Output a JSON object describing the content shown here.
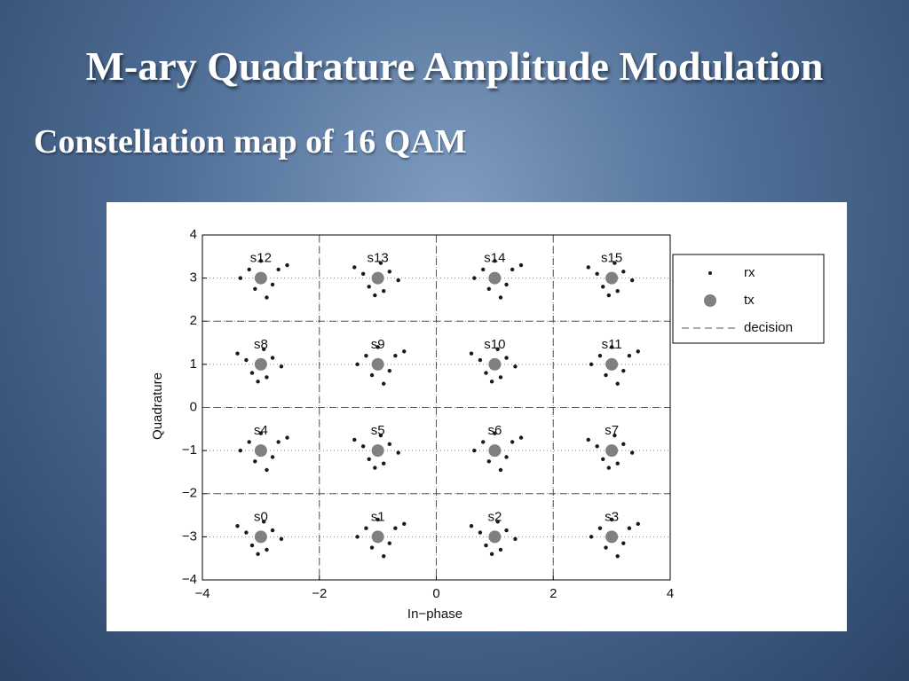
{
  "title": "M-ary Quadrature Amplitude Modulation",
  "subtitle": "Constellation map of 16 QAM",
  "chart_data": {
    "type": "scatter",
    "xlabel": "In−phase",
    "ylabel": "Quadrature",
    "xlim": [
      -4,
      4
    ],
    "ylim": [
      -4,
      4
    ],
    "xticks": [
      {
        "value": -4,
        "label": "−4"
      },
      {
        "value": -2,
        "label": "−2"
      },
      0,
      2,
      4
    ],
    "yticks": [
      {
        "value": -4,
        "label": "−4"
      },
      {
        "value": -3,
        "label": "−3"
      },
      {
        "value": -2,
        "label": "−2"
      },
      {
        "value": -1,
        "label": "−1"
      },
      0,
      1,
      2,
      3,
      4
    ],
    "grid": true,
    "legend": "right",
    "series": [
      {
        "name": "rx",
        "color": "#1a1a1a",
        "x": [
          -2.8,
          -3.25,
          -2.9,
          -3.15,
          -2.65,
          -3.4,
          -2.95,
          -3.05,
          -1.2,
          -0.7,
          -1.1,
          -0.8,
          -1.35,
          -0.55,
          -1.0,
          -0.9,
          1.2,
          0.75,
          1.1,
          0.85,
          1.35,
          0.6,
          1.05,
          0.95,
          2.8,
          3.3,
          2.9,
          3.2,
          2.65,
          3.45,
          3.0,
          3.1,
          -3.2,
          -2.7,
          -3.1,
          -2.8,
          -3.35,
          -2.55,
          -3.0,
          -2.9,
          -0.8,
          -1.25,
          -0.9,
          -1.15,
          -0.65,
          -1.4,
          -0.95,
          -1.05,
          0.8,
          1.3,
          0.9,
          1.2,
          0.65,
          1.45,
          1.0,
          1.1,
          3.2,
          2.75,
          3.1,
          2.85,
          3.35,
          2.6,
          3.05,
          2.95,
          -2.8,
          -3.25,
          -2.9,
          -3.15,
          -2.65,
          -3.4,
          -2.95,
          -3.05,
          -1.2,
          -0.7,
          -1.1,
          -0.8,
          -1.35,
          -0.55,
          -1.0,
          -0.9,
          1.2,
          0.75,
          1.1,
          0.85,
          1.35,
          0.6,
          1.05,
          0.95,
          2.8,
          3.3,
          2.9,
          3.2,
          2.65,
          3.45,
          3.0,
          3.1,
          -3.2,
          -2.7,
          -3.1,
          -2.8,
          -3.35,
          -2.55,
          -3.0,
          -2.9,
          -0.8,
          -1.25,
          -0.9,
          -1.15,
          -0.65,
          -1.4,
          -0.95,
          -1.05,
          0.8,
          1.3,
          0.9,
          1.2,
          0.65,
          1.45,
          1.0,
          1.1,
          3.2,
          2.75,
          3.1,
          2.85,
          3.35,
          2.6,
          3.05,
          2.95
        ],
        "values": [
          -2.85,
          -2.9,
          -3.3,
          -3.2,
          -3.05,
          -2.75,
          -2.65,
          -3.4,
          -2.8,
          -2.8,
          -3.25,
          -3.15,
          -3.0,
          -2.7,
          -2.6,
          -3.45,
          -2.85,
          -2.9,
          -3.3,
          -3.2,
          -3.05,
          -2.75,
          -2.65,
          -3.4,
          -2.8,
          -2.8,
          -3.25,
          -3.15,
          -3.0,
          -2.7,
          -2.6,
          -3.45,
          -0.8,
          -0.8,
          -1.25,
          -1.15,
          -1.0,
          -0.7,
          -0.6,
          -1.45,
          -0.85,
          -0.9,
          -1.3,
          -1.2,
          -1.05,
          -0.75,
          -0.65,
          -1.4,
          -0.8,
          -0.8,
          -1.25,
          -1.15,
          -1.0,
          -0.7,
          -0.6,
          -1.45,
          -0.85,
          -0.9,
          -1.3,
          -1.2,
          -1.05,
          -0.75,
          -0.65,
          -1.4,
          1.15,
          1.1,
          0.7,
          0.8,
          0.95,
          1.25,
          1.35,
          0.6,
          1.2,
          1.2,
          0.75,
          0.85,
          1.0,
          1.3,
          1.4,
          0.55,
          1.15,
          1.1,
          0.7,
          0.8,
          0.95,
          1.25,
          1.35,
          0.6,
          1.2,
          1.2,
          0.75,
          0.85,
          1.0,
          1.3,
          1.4,
          0.55,
          3.2,
          3.2,
          2.75,
          2.85,
          3.0,
          3.3,
          3.4,
          2.55,
          3.15,
          3.1,
          2.7,
          2.8,
          2.95,
          3.25,
          3.35,
          2.6,
          3.2,
          3.2,
          2.75,
          2.85,
          3.0,
          3.3,
          3.4,
          2.55,
          3.15,
          3.1,
          2.7,
          2.8,
          2.95,
          3.25,
          3.35,
          2.6
        ]
      },
      {
        "name": "tx",
        "color": "#808080",
        "x": [
          -3,
          -1,
          1,
          3,
          -3,
          -1,
          1,
          3,
          -3,
          -1,
          1,
          3,
          -3,
          -1,
          1,
          3
        ],
        "values": [
          -3,
          -3,
          -3,
          -3,
          -1,
          -1,
          -1,
          -1,
          1,
          1,
          1,
          1,
          3,
          3,
          3,
          3
        ],
        "point_labels": [
          "s0",
          "s1",
          "s2",
          "s3",
          "s4",
          "s5",
          "s6",
          "s7",
          "s8",
          "s9",
          "s10",
          "s11",
          "s12",
          "s13",
          "s14",
          "s15"
        ]
      },
      {
        "name": "decision",
        "color": "#555555",
        "x": [
          -2,
          0,
          2
        ],
        "values": [
          -2,
          0,
          2
        ]
      }
    ]
  }
}
